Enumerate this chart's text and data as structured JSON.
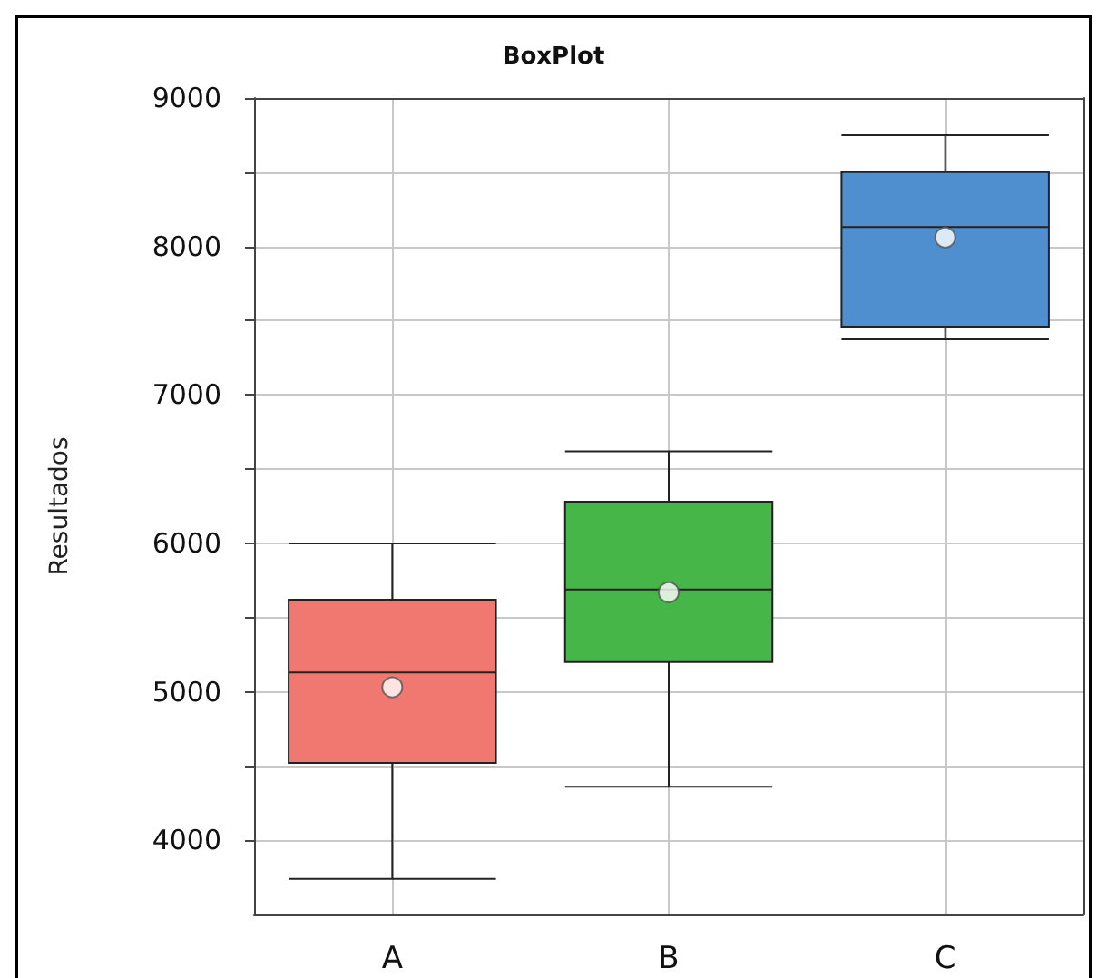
{
  "chart_data": {
    "type": "box",
    "title": "BoxPlot",
    "ylabel": "Resultados",
    "categories": [
      "A",
      "B",
      "C"
    ],
    "colors": [
      "#f07870",
      "#47b649",
      "#4f8fd0"
    ],
    "boxes": [
      {
        "low": 3740,
        "q1": 4520,
        "median": 5130,
        "q3": 5620,
        "high": 6000,
        "mean": 5030
      },
      {
        "low": 4360,
        "q1": 5200,
        "median": 5690,
        "q3": 6280,
        "high": 6620,
        "mean": 5670
      },
      {
        "low": 7375,
        "q1": 7460,
        "median": 8130,
        "q3": 8500,
        "high": 8750,
        "mean": 8060
      }
    ],
    "ylim": [
      3500,
      9000
    ],
    "yticks": [
      4000,
      {
        "value": 4500,
        "label": null
      },
      5000,
      {
        "value": 5500,
        "label": null
      },
      6000,
      {
        "value": 6500,
        "label": null
      },
      7000,
      {
        "value": 7500,
        "label": null
      },
      8000,
      {
        "value": 8500,
        "label": null
      },
      9000
    ],
    "grid": true
  }
}
